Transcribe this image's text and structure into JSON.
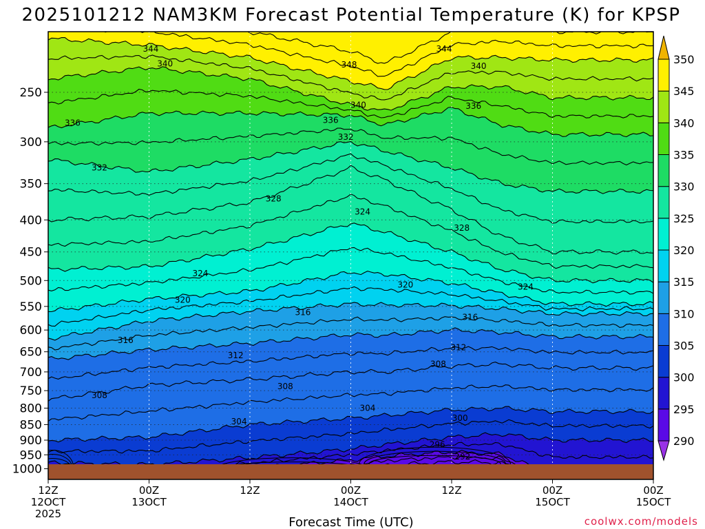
{
  "chart_data": {
    "type": "heatmap",
    "title": "2025101212 NAM3KM Forecast Potential Temperature (K) for KPSP",
    "xlabel": "Forecast Time (UTC)",
    "ylabel": "",
    "credit": "coolwx.com/models",
    "x_range_hours": [
      0,
      72
    ],
    "y_axis": {
      "scale": "log",
      "reversed": true,
      "range": [
        200,
        1040
      ]
    },
    "y_ticks": [
      250,
      300,
      350,
      400,
      450,
      500,
      550,
      600,
      650,
      700,
      750,
      800,
      850,
      900,
      950,
      1000
    ],
    "x_ticks": [
      {
        "hour": 0,
        "line1": "12Z",
        "line2": "12OCT",
        "line3": "2025"
      },
      {
        "hour": 12,
        "line1": "00Z",
        "line2": "13OCT",
        "line3": ""
      },
      {
        "hour": 24,
        "line1": "12Z",
        "line2": "",
        "line3": ""
      },
      {
        "hour": 36,
        "line1": "00Z",
        "line2": "14OCT",
        "line3": ""
      },
      {
        "hour": 48,
        "line1": "12Z",
        "line2": "",
        "line3": ""
      },
      {
        "hour": 60,
        "line1": "00Z",
        "line2": "15OCT",
        "line3": ""
      }
    ],
    "ground_pressure_hpa": 1000,
    "colorbar": {
      "labels": [
        290,
        295,
        300,
        305,
        310,
        315,
        320,
        325,
        330,
        335,
        340,
        345,
        350
      ],
      "bins": [
        {
          "lo": 285,
          "hi": 290,
          "color": "#9932e6"
        },
        {
          "lo": 290,
          "hi": 295,
          "color": "#5a0ae6"
        },
        {
          "lo": 295,
          "hi": 300,
          "color": "#2214d2"
        },
        {
          "lo": 300,
          "hi": 305,
          "color": "#0a3cd2"
        },
        {
          "lo": 305,
          "hi": 310,
          "color": "#1e6ee6"
        },
        {
          "lo": 310,
          "hi": 315,
          "color": "#1ea0e6"
        },
        {
          "lo": 315,
          "hi": 320,
          "color": "#00d2f0"
        },
        {
          "lo": 320,
          "hi": 325,
          "color": "#00f0d2"
        },
        {
          "lo": 325,
          "hi": 330,
          "color": "#14e6a0"
        },
        {
          "lo": 330,
          "hi": 335,
          "color": "#1edc64"
        },
        {
          "lo": 335,
          "hi": 340,
          "color": "#50dc14"
        },
        {
          "lo": 340,
          "hi": 345,
          "color": "#a0e614"
        },
        {
          "lo": 345,
          "hi": 350,
          "color": "#fff000"
        },
        {
          "lo": 350,
          "hi": 355,
          "color": "#f0b400"
        }
      ]
    },
    "profile_x_hours": [
      0,
      12,
      24,
      36,
      40,
      48,
      54,
      60
    ],
    "profiles": [
      {
        "theta": 292,
        "p": [
          1055,
          1055,
          1055,
          1010,
          988,
          975,
          978,
          1055
        ]
      },
      {
        "theta": 296,
        "p": [
          1012,
          1022,
          1000,
          968,
          955,
          940,
          948,
          1020
        ]
      },
      {
        "theta": 300,
        "p": [
          978,
          985,
          960,
          930,
          915,
          890,
          880,
          900
        ]
      },
      {
        "theta": 304,
        "p": [
          900,
          890,
          850,
          830,
          822,
          805,
          800,
          810
        ]
      },
      {
        "theta": 308,
        "p": [
          775,
          735,
          720,
          700,
          700,
          685,
          680,
          690
        ]
      },
      {
        "theta": 312,
        "p": [
          668,
          645,
          630,
          610,
          612,
          600,
          605,
          615
        ]
      },
      {
        "theta": 316,
        "p": [
          620,
          580,
          560,
          545,
          547,
          548,
          555,
          565
        ]
      },
      {
        "theta": 320,
        "p": [
          560,
          535,
          520,
          485,
          488,
          505,
          525,
          545
        ]
      },
      {
        "theta": 324,
        "p": [
          480,
          475,
          445,
          405,
          418,
          450,
          480,
          500
        ]
      },
      {
        "theta": 328,
        "p": [
          400,
          395,
          375,
          330,
          345,
          385,
          425,
          450
        ]
      },
      {
        "theta": 332,
        "p": [
          320,
          335,
          320,
          300,
          310,
          330,
          350,
          360
        ]
      },
      {
        "theta": 336,
        "p": [
          285,
          270,
          270,
          272,
          282,
          265,
          282,
          292
        ]
      },
      {
        "theta": 340,
        "p": [
          238,
          228,
          238,
          262,
          268,
          245,
          245,
          255
        ]
      },
      {
        "theta": 344,
        "p": [
          205,
          210,
          220,
          240,
          247,
          220,
          220,
          222
        ]
      },
      {
        "theta": 348,
        "p": [
          190,
          190,
          200,
          215,
          225,
          200,
          195,
          200
        ]
      }
    ],
    "contour_labels": [
      {
        "text": "344",
        "hour": 12.2,
        "p": 213
      },
      {
        "text": "340",
        "hour": 13.9,
        "p": 225
      },
      {
        "text": "336",
        "hour": 2.9,
        "p": 280
      },
      {
        "text": "332",
        "hour": 6.1,
        "p": 330
      },
      {
        "text": "348",
        "hour": 35.8,
        "p": 226
      },
      {
        "text": "344",
        "hour": 47.1,
        "p": 213
      },
      {
        "text": "340",
        "hour": 51.2,
        "p": 227
      },
      {
        "text": "340",
        "hour": 36.9,
        "p": 262
      },
      {
        "text": "336",
        "hour": 33.6,
        "p": 277
      },
      {
        "text": "332",
        "hour": 35.4,
        "p": 295
      },
      {
        "text": "336",
        "hour": 50.6,
        "p": 263
      },
      {
        "text": "328",
        "hour": 26.8,
        "p": 370
      },
      {
        "text": "324",
        "hour": 37.4,
        "p": 388
      },
      {
        "text": "328",
        "hour": 49.2,
        "p": 412
      },
      {
        "text": "324",
        "hour": 18.1,
        "p": 487
      },
      {
        "text": "320",
        "hour": 42.5,
        "p": 508
      },
      {
        "text": "324",
        "hour": 56.8,
        "p": 512
      },
      {
        "text": "320",
        "hour": 16.0,
        "p": 537
      },
      {
        "text": "316",
        "hour": 30.3,
        "p": 562
      },
      {
        "text": "316",
        "hour": 50.2,
        "p": 572
      },
      {
        "text": "316",
        "hour": 9.2,
        "p": 623
      },
      {
        "text": "312",
        "hour": 22.3,
        "p": 659
      },
      {
        "text": "312",
        "hour": 48.8,
        "p": 640
      },
      {
        "text": "308",
        "hour": 46.4,
        "p": 680
      },
      {
        "text": "308",
        "hour": 28.2,
        "p": 738
      },
      {
        "text": "308",
        "hour": 6.1,
        "p": 763
      },
      {
        "text": "304",
        "hour": 38.0,
        "p": 800
      },
      {
        "text": "304",
        "hour": 22.7,
        "p": 840
      },
      {
        "text": "300",
        "hour": 49.0,
        "p": 830
      },
      {
        "text": "296",
        "hour": 46.3,
        "p": 915
      },
      {
        "text": "292",
        "hour": 49.3,
        "p": 957
      }
    ]
  }
}
